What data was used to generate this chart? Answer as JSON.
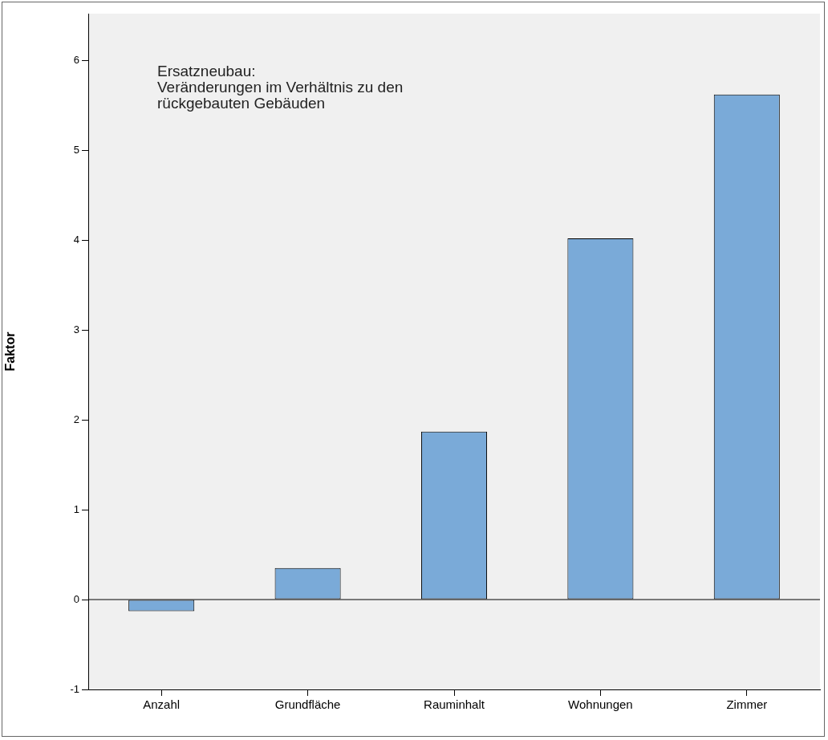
{
  "chart_data": {
    "type": "bar",
    "title": "Ersatzneubau:\nVeränderungen im Verhältnis zu den\nrückgebauten Gebäuden",
    "ylabel": "Faktor",
    "categories": [
      "Anzahl",
      "Grundfläche",
      "Rauminhalt",
      "Wohnungen",
      "Zimmer"
    ],
    "values": [
      -0.13,
      0.35,
      1.87,
      4.02,
      5.62
    ],
    "color": "#7aaad8",
    "ylim": [
      -1,
      6.52
    ],
    "yticks": [
      -1,
      0,
      1,
      2,
      3,
      4,
      5,
      6
    ],
    "ref_lines": [
      {
        "axis": "y",
        "value": 0,
        "color": "#000000"
      }
    ],
    "grid": false,
    "legend": false
  }
}
